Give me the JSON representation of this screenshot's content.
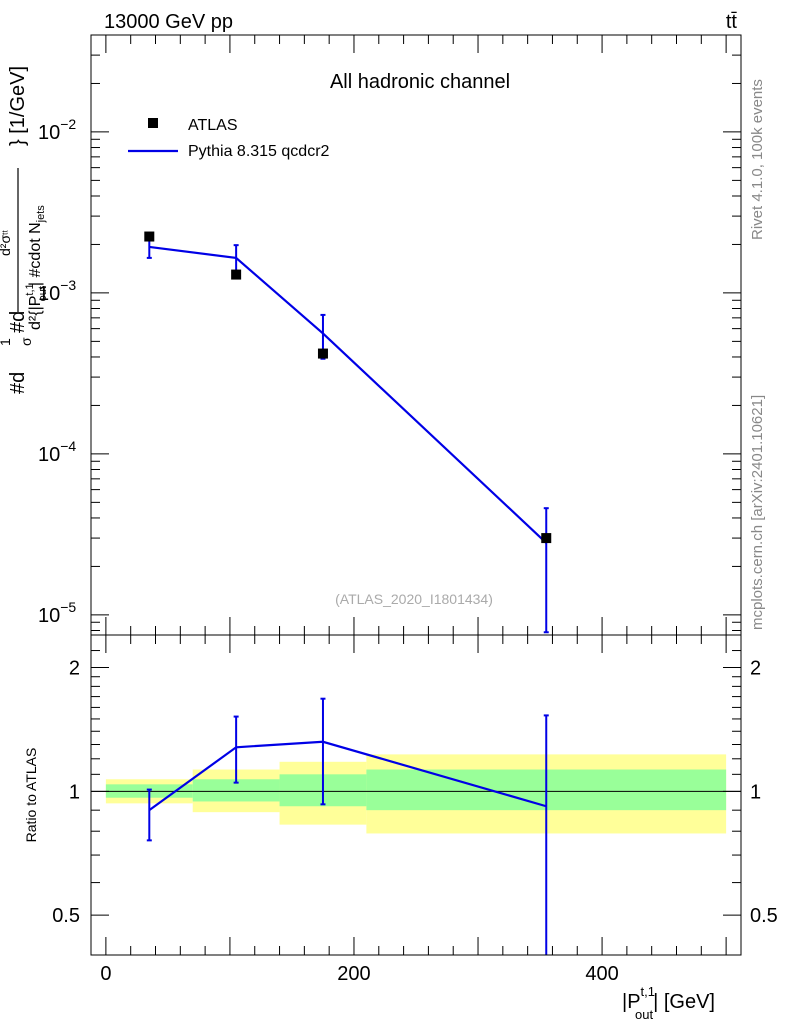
{
  "header": {
    "left_label": "13000 GeV pp",
    "right_label": "tt̄",
    "side_text_1": "Rivet 4.1.0,  100k events",
    "side_text_2": "mcplots.cern.ch [arXiv:2401.10621]"
  },
  "chart_data": [
    {
      "type": "line",
      "panel": "main",
      "title": "All hadronic channel",
      "ylabel": "#d1/σ#dd²σ/d²{|P_out^{t,1}| #cdot N_jets} [1/GeV]",
      "ylabel_parts": {
        "a": "#d",
        "b": "1",
        "c": "σ",
        "d": "#d",
        "e": "d²σ",
        "f": "ᵗᵗ",
        "g": "d²{|P",
        "h": "t,1",
        "i": "out",
        "j": "| #cdot N",
        "k": "jets",
        "l": "} [1/GeV]"
      },
      "yscale": "log",
      "ylim": [
        7.5e-06,
        0.04
      ],
      "ytick_mantissa": "10",
      "ytick_exponents": [
        "−2",
        "−3",
        "−4",
        "−5"
      ],
      "yticks": [
        0.01,
        0.001,
        0.0001,
        1e-05
      ],
      "watermark": "(ATLAS_2020_I1801434)",
      "legend": [
        "ATLAS",
        "Pythia 8.315 qcdcr2"
      ],
      "series": [
        {
          "name": "ATLAS",
          "x": [
            35,
            105,
            175,
            355
          ],
          "y": [
            0.00224,
            0.0013,
            0.00042,
            3e-05
          ]
        },
        {
          "name": "Pythia 8.315 qcdcr2",
          "x": [
            35,
            105,
            175,
            355
          ],
          "y": [
            0.00193,
            0.00165,
            0.00056,
            2.8e-05
          ],
          "err_low": [
            0.00165,
            0.00135,
            0.00039,
            7.8e-06
          ],
          "err_high": [
            0.00218,
            0.00198,
            0.00073,
            4.6e-05
          ]
        }
      ]
    },
    {
      "type": "line",
      "panel": "ratio",
      "ylabel": "Ratio to ATLAS",
      "xlabel": "|P_out^{t,1}| [GeV]",
      "xlabel_parts": {
        "a": "|P",
        "b": "t,1",
        "c": "out",
        "d": "| [GeV]"
      },
      "xlim": [
        -12,
        512
      ],
      "yscale": "log",
      "ylim": [
        0.4,
        2.4
      ],
      "xticks": [
        0,
        200,
        400
      ],
      "xtick_labels": [
        "0",
        "200",
        "400"
      ],
      "yticks": [
        0.5,
        1,
        2
      ],
      "ytick_labels": [
        "0.5",
        "1",
        "2"
      ],
      "bands": [
        {
          "x0": 0,
          "x1": 70,
          "g_lo": 0.965,
          "g_hi": 1.04,
          "y_lo": 0.935,
          "y_hi": 1.07
        },
        {
          "x0": 70,
          "x1": 140,
          "g_lo": 0.945,
          "g_hi": 1.07,
          "y_lo": 0.89,
          "y_hi": 1.13
        },
        {
          "x0": 140,
          "x1": 210,
          "g_lo": 0.92,
          "g_hi": 1.1,
          "y_lo": 0.83,
          "y_hi": 1.18
        },
        {
          "x0": 210,
          "x1": 500,
          "g_lo": 0.9,
          "g_hi": 1.13,
          "y_lo": 0.79,
          "y_hi": 1.23
        }
      ],
      "series": [
        {
          "name": "Pythia 8.315 qcdcr2",
          "x": [
            35,
            105,
            175,
            355
          ],
          "y": [
            0.9,
            1.28,
            1.32,
            0.92
          ],
          "err_low": [
            0.76,
            1.05,
            0.93,
            0.35
          ],
          "err_high": [
            1.01,
            1.52,
            1.68,
            1.53
          ]
        }
      ]
    }
  ]
}
